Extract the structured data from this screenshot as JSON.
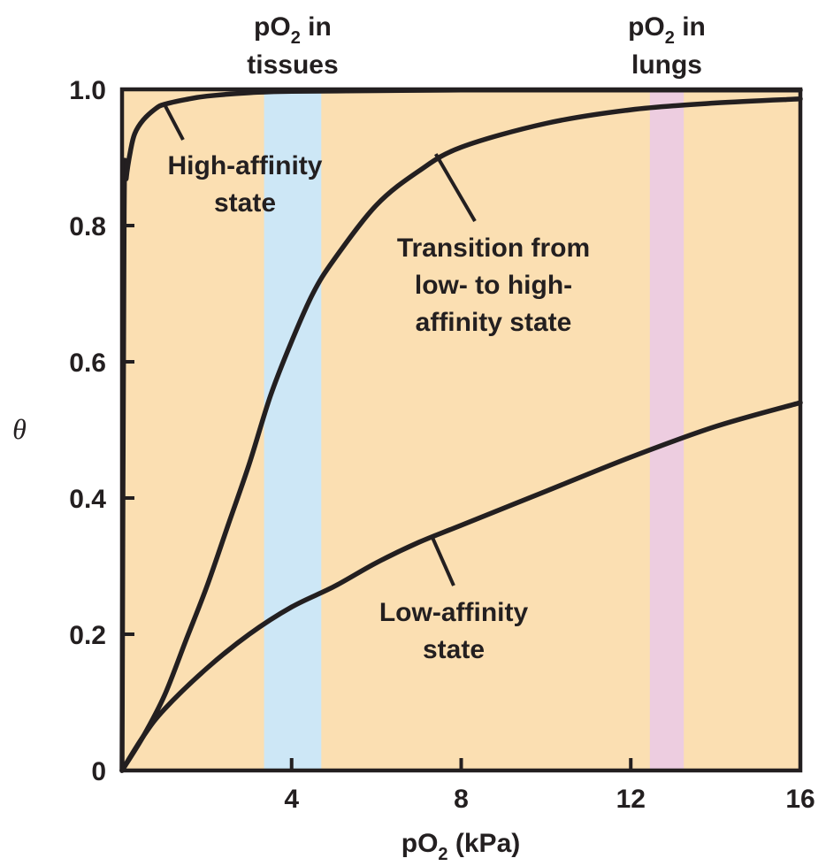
{
  "chart_data": {
    "type": "line",
    "xlabel": {
      "pre": "pO",
      "sub": "2",
      "post": " (kPa)"
    },
    "ylabel": "θ",
    "xlim": [
      0,
      16
    ],
    "ylim": [
      0,
      1.0
    ],
    "x_ticks": [
      4,
      8,
      12,
      16
    ],
    "x_tick_labels": [
      "4",
      "8",
      "12",
      "16"
    ],
    "y_ticks": [
      0,
      0.2,
      0.4,
      0.6,
      0.8,
      1.0
    ],
    "y_tick_labels": [
      "0",
      "0.2",
      "0.4",
      "0.6",
      "0.8",
      "1.0"
    ],
    "grid": false,
    "background_color": "#fbdfb2",
    "bands": [
      {
        "from": 3.35,
        "to": 4.7,
        "color": "#cde7f6",
        "label_pre": "pO",
        "label_sub": "2",
        "label_post": " in",
        "label_line2": "tissues"
      },
      {
        "from": 12.45,
        "to": 13.25,
        "color": "#edcde0",
        "label_pre": "pO",
        "label_sub": "2",
        "label_post": " in",
        "label_line2": "lungs"
      }
    ],
    "series": [
      {
        "x": [
          0,
          0.05,
          0.1,
          0.2,
          0.3,
          0.5,
          0.8,
          1.0,
          1.5,
          2,
          3,
          4,
          6,
          8,
          12,
          16
        ],
        "y": [
          0,
          0.82,
          0.87,
          0.91,
          0.935,
          0.955,
          0.972,
          0.978,
          0.985,
          0.99,
          0.995,
          0.997,
          0.998,
          0.999,
          0.999,
          0.999
        ]
      },
      {
        "x": [
          0,
          0.5,
          1,
          1.5,
          2,
          2.5,
          3,
          3.5,
          4,
          4.5,
          5,
          6,
          7,
          8,
          10,
          12,
          14,
          16
        ],
        "y": [
          0,
          0.05,
          0.11,
          0.19,
          0.27,
          0.36,
          0.45,
          0.55,
          0.63,
          0.7,
          0.75,
          0.83,
          0.88,
          0.915,
          0.95,
          0.97,
          0.98,
          0.986
        ]
      },
      {
        "x": [
          0,
          0.5,
          1,
          2,
          3,
          4,
          5,
          6,
          7,
          8,
          10,
          12,
          14,
          16
        ],
        "y": [
          0,
          0.05,
          0.09,
          0.15,
          0.2,
          0.24,
          0.27,
          0.305,
          0.335,
          0.36,
          0.41,
          0.46,
          0.505,
          0.54
        ]
      }
    ],
    "annotations": [
      {
        "lines": [
          "High-affinity",
          "state"
        ],
        "points_to": [
          1.0,
          0.978
        ]
      },
      {
        "lines": [
          "Transition from",
          "low- to high-",
          "affinity state"
        ],
        "points_to": [
          7.4,
          0.905
        ]
      },
      {
        "lines": [
          "Low-affinity",
          "state"
        ],
        "points_to": [
          7.3,
          0.345
        ]
      }
    ]
  }
}
